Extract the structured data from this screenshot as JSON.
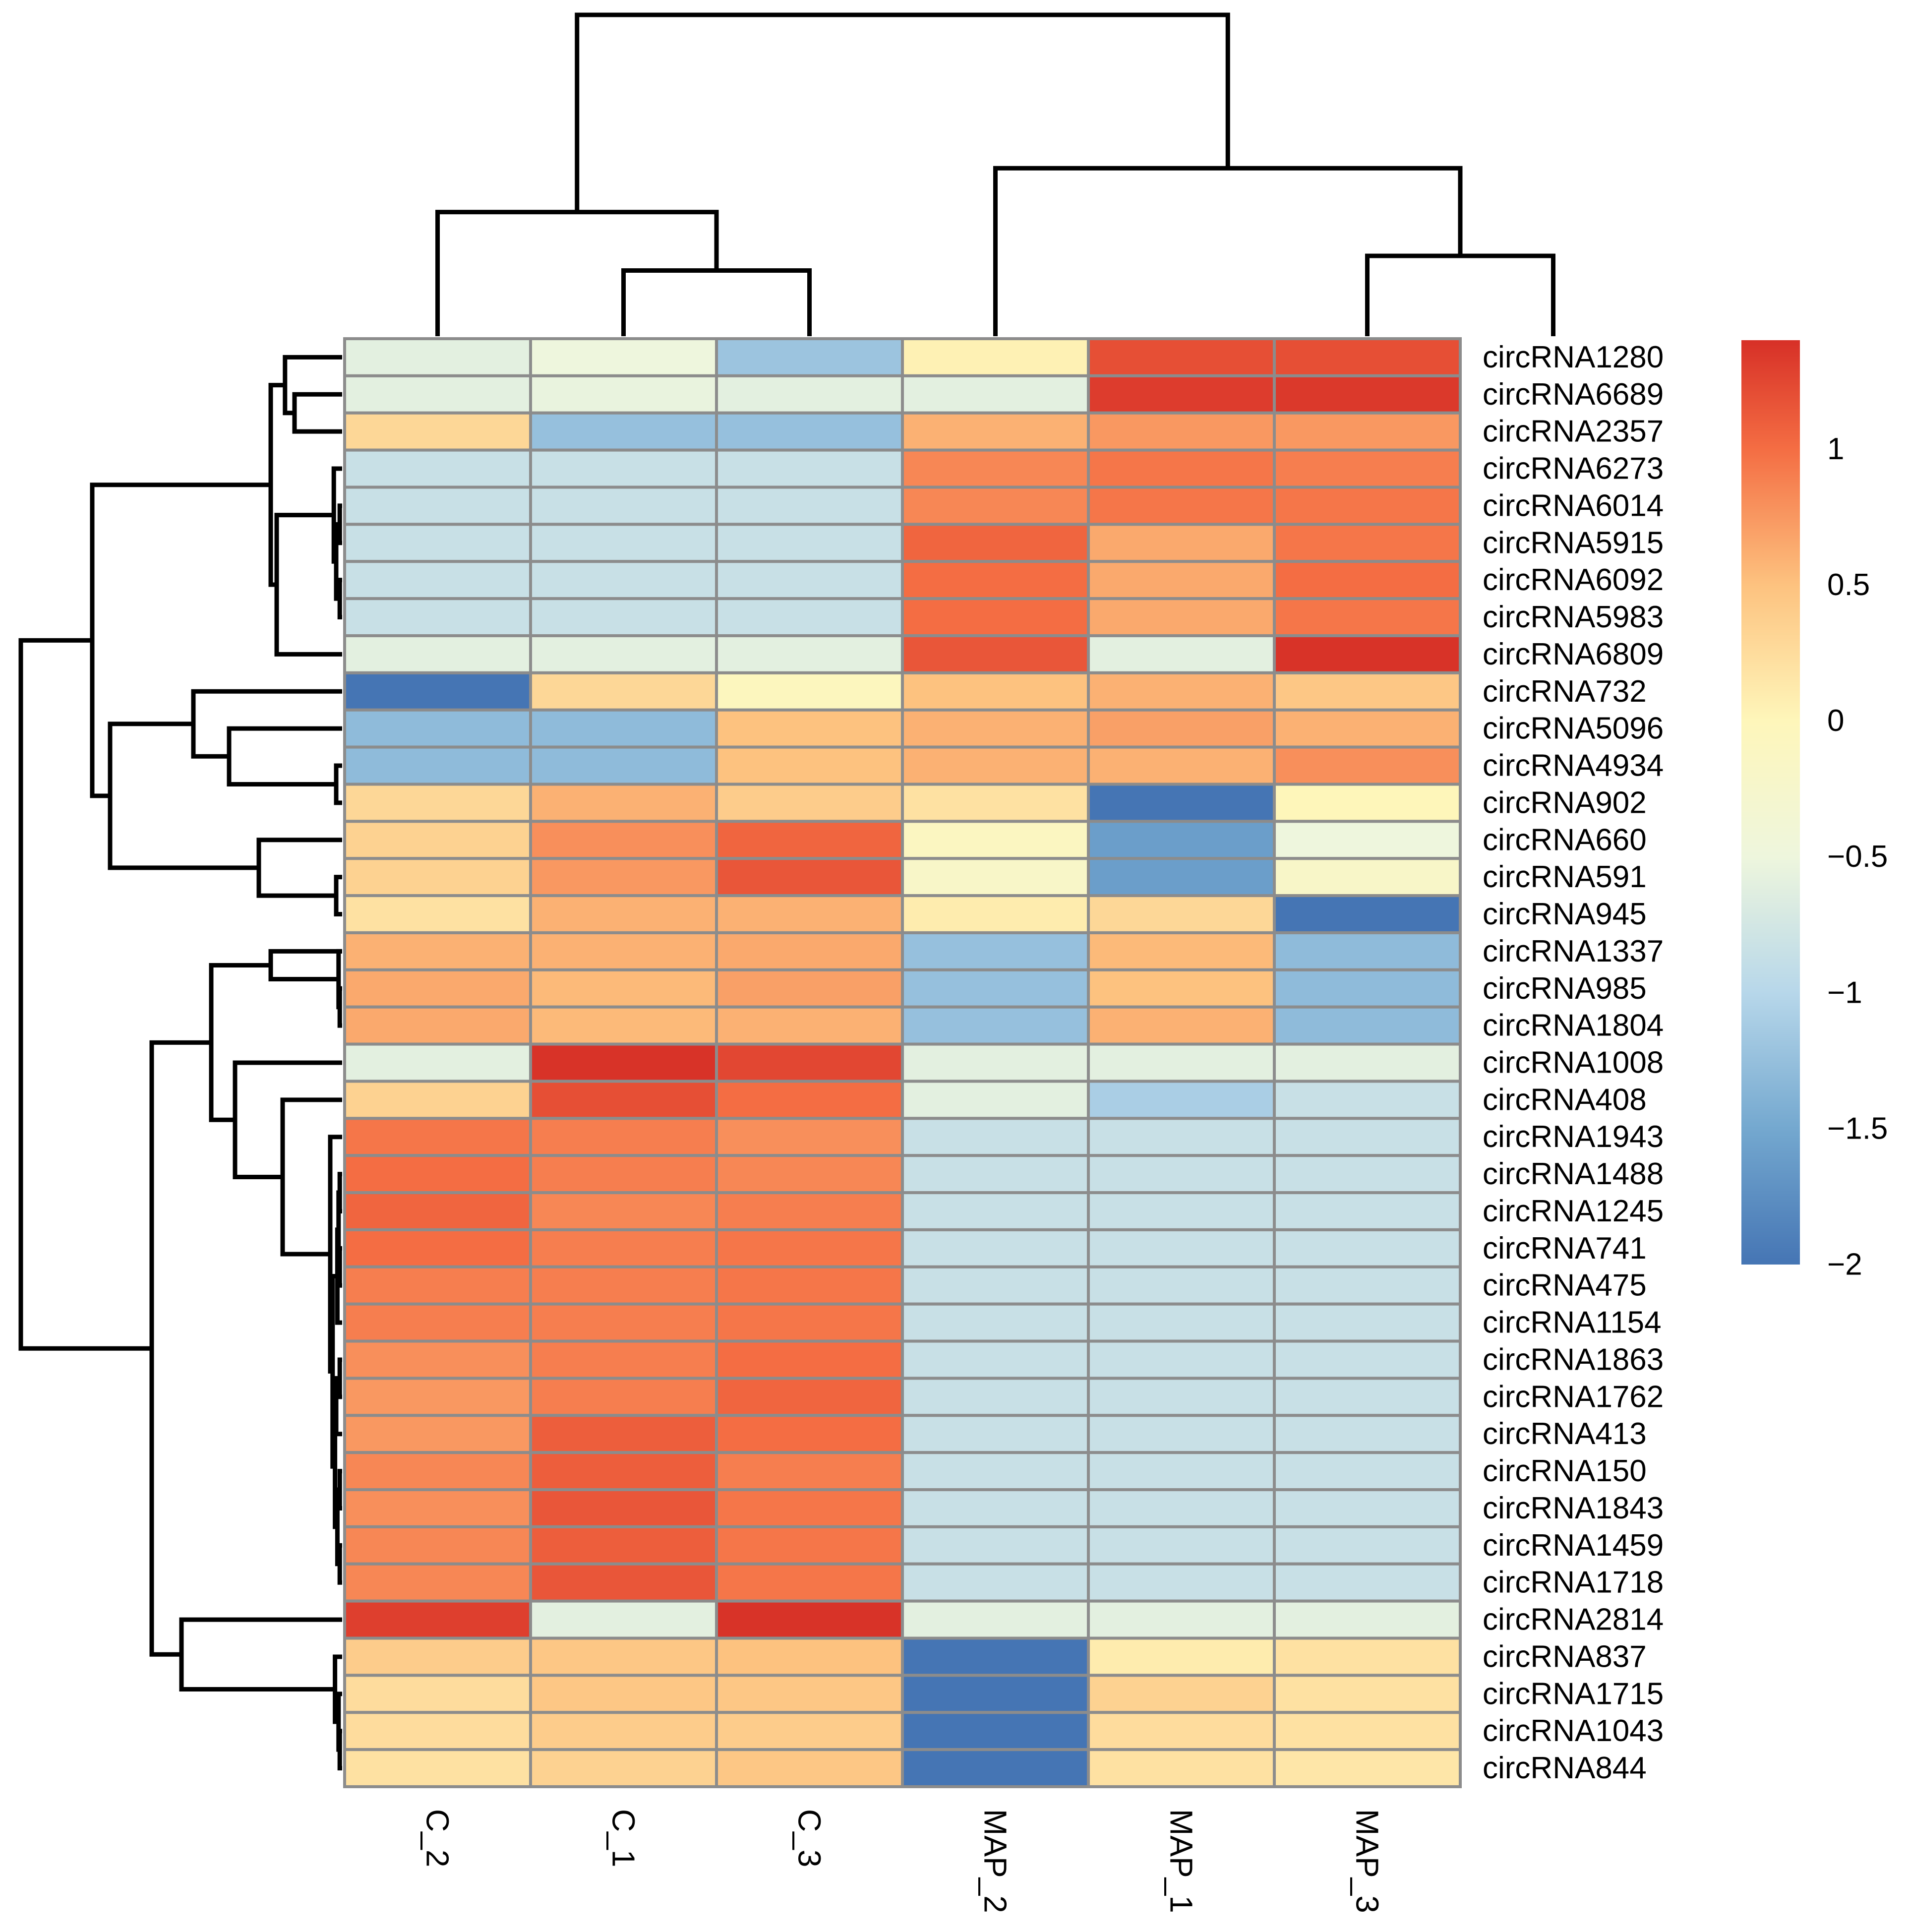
{
  "chart_data": {
    "type": "heatmap",
    "title": "",
    "columns": [
      "C_2",
      "C_1",
      "C_3",
      "MAP_2",
      "MAP_1",
      "MAP_3"
    ],
    "rows": [
      "circRNA1280",
      "circRNA6689",
      "circRNA2357",
      "circRNA6273",
      "circRNA6014",
      "circRNA5915",
      "circRNA6092",
      "circRNA5983",
      "circRNA6809",
      "circRNA732",
      "circRNA5096",
      "circRNA4934",
      "circRNA902",
      "circRNA660",
      "circRNA591",
      "circRNA945",
      "circRNA1337",
      "circRNA985",
      "circRNA1804",
      "circRNA1008",
      "circRNA408",
      "circRNA1943",
      "circRNA1488",
      "circRNA1245",
      "circRNA741",
      "circRNA475",
      "circRNA1154",
      "circRNA1863",
      "circRNA1762",
      "circRNA413",
      "circRNA150",
      "circRNA1843",
      "circRNA1459",
      "circRNA1718",
      "circRNA2814",
      "circRNA837",
      "circRNA1715",
      "circRNA1043",
      "circRNA844"
    ],
    "values": [
      [
        -0.6,
        -0.5,
        -1.2,
        0.05,
        1.2,
        1.2
      ],
      [
        -0.6,
        -0.55,
        -0.6,
        -0.6,
        1.32,
        1.34
      ],
      [
        0.3,
        -1.25,
        -1.25,
        0.6,
        0.75,
        0.75
      ],
      [
        -0.85,
        -0.85,
        -0.85,
        0.85,
        0.95,
        0.9
      ],
      [
        -0.85,
        -0.85,
        -0.85,
        0.85,
        0.95,
        0.95
      ],
      [
        -0.85,
        -0.85,
        -0.85,
        1.05,
        0.65,
        0.95
      ],
      [
        -0.85,
        -0.85,
        -0.85,
        1.0,
        0.65,
        1.0
      ],
      [
        -0.85,
        -0.85,
        -0.85,
        1.0,
        0.65,
        0.95
      ],
      [
        -0.6,
        -0.6,
        -0.6,
        1.15,
        -0.6,
        1.38
      ],
      [
        -2.0,
        0.3,
        -0.05,
        0.5,
        0.6,
        0.45
      ],
      [
        -1.3,
        -1.3,
        0.5,
        0.6,
        0.7,
        0.6
      ],
      [
        -1.3,
        -1.3,
        0.5,
        0.6,
        0.6,
        0.8
      ],
      [
        0.3,
        0.6,
        0.4,
        0.2,
        -2.0,
        0.0
      ],
      [
        0.35,
        0.8,
        1.05,
        -0.1,
        -1.6,
        -0.5
      ],
      [
        0.35,
        0.75,
        1.15,
        -0.2,
        -1.6,
        -0.2
      ],
      [
        0.2,
        0.6,
        0.6,
        0.1,
        0.3,
        -2.0
      ],
      [
        0.6,
        0.6,
        0.65,
        -1.25,
        0.55,
        -1.3
      ],
      [
        0.65,
        0.55,
        0.7,
        -1.25,
        0.5,
        -1.3
      ],
      [
        0.65,
        0.55,
        0.6,
        -1.25,
        0.6,
        -1.3
      ],
      [
        -0.6,
        1.38,
        1.25,
        -0.6,
        -0.6,
        -0.6
      ],
      [
        0.35,
        1.2,
        1.0,
        -0.6,
        -1.1,
        -0.85
      ],
      [
        0.95,
        0.9,
        0.8,
        -0.85,
        -0.85,
        -0.85
      ],
      [
        1.0,
        0.9,
        0.85,
        -0.85,
        -0.85,
        -0.85
      ],
      [
        1.05,
        0.85,
        0.9,
        -0.85,
        -0.85,
        -0.85
      ],
      [
        1.0,
        0.9,
        0.95,
        -0.85,
        -0.85,
        -0.85
      ],
      [
        0.9,
        0.9,
        0.95,
        -0.85,
        -0.85,
        -0.85
      ],
      [
        0.9,
        0.9,
        0.95,
        -0.85,
        -0.85,
        -0.85
      ],
      [
        0.8,
        0.9,
        1.0,
        -0.85,
        -0.85,
        -0.85
      ],
      [
        0.75,
        0.9,
        1.05,
        -0.85,
        -0.85,
        -0.85
      ],
      [
        0.75,
        1.1,
        1.0,
        -0.85,
        -0.85,
        -0.85
      ],
      [
        0.85,
        1.1,
        0.9,
        -0.85,
        -0.85,
        -0.85
      ],
      [
        0.8,
        1.15,
        0.95,
        -0.85,
        -0.85,
        -0.85
      ],
      [
        0.85,
        1.1,
        0.95,
        -0.85,
        -0.85,
        -0.85
      ],
      [
        0.85,
        1.15,
        0.95,
        -0.85,
        -0.85,
        -0.85
      ],
      [
        1.3,
        -0.6,
        1.38,
        -0.6,
        -0.6,
        -0.6
      ],
      [
        0.4,
        0.45,
        0.5,
        -2.0,
        0.1,
        0.2
      ],
      [
        0.25,
        0.45,
        0.45,
        -2.0,
        0.35,
        0.2
      ],
      [
        0.25,
        0.4,
        0.4,
        -2.0,
        0.25,
        0.2
      ],
      [
        0.2,
        0.35,
        0.45,
        -2.0,
        0.2,
        0.15
      ]
    ],
    "color_scale": {
      "min": -2,
      "max": 1.4,
      "stops": [
        {
          "value": -2.0,
          "color": "#4575b4"
        },
        {
          "value": -1.5,
          "color": "#74a8cf"
        },
        {
          "value": -1.0,
          "color": "#b7d7ea"
        },
        {
          "value": -0.5,
          "color": "#eef6dd"
        },
        {
          "value": 0.0,
          "color": "#fef6ba"
        },
        {
          "value": 0.5,
          "color": "#fdc27f"
        },
        {
          "value": 1.0,
          "color": "#f46d43"
        },
        {
          "value": 1.4,
          "color": "#d73027"
        }
      ],
      "ticks": [
        1,
        0.5,
        0,
        -0.5,
        -1,
        -1.5,
        -2
      ],
      "tick_labels": [
        "1",
        "0.5",
        "0",
        "−0.5",
        "−1",
        "−1.5",
        "−2"
      ]
    },
    "column_dendrogram": {
      "merges": [
        [
          1,
          2,
          0.45
        ],
        [
          5,
          6,
          0.55
        ],
        [
          0,
          -1,
          0.85
        ],
        [
          3,
          -2,
          1.15
        ],
        [
          -3,
          -4,
          2.2
        ]
      ]
    },
    "row_dendrogram": {
      "merges": [
        [
          4,
          5,
          0.02
        ],
        [
          6,
          7,
          0.02
        ],
        [
          -1,
          -2,
          0.05
        ],
        [
          3,
          -3,
          0.07
        ],
        [
          11,
          12,
          0.05
        ],
        [
          17,
          18,
          0.02
        ],
        [
          16,
          -6,
          0.03
        ],
        [
          14,
          15,
          0.05
        ],
        [
          22,
          23,
          0.02
        ],
        [
          24,
          25,
          0.02
        ],
        [
          -9,
          -10,
          0.03
        ],
        [
          27,
          28,
          0.02
        ],
        [
          -11,
          26,
          0.04
        ],
        [
          -12,
          29,
          0.05
        ],
        [
          30,
          31,
          0.02
        ],
        [
          32,
          33,
          0.02
        ],
        [
          -15,
          -16,
          0.04
        ],
        [
          -14,
          -17,
          0.06
        ],
        [
          -13,
          -18,
          0.08
        ],
        [
          21,
          -19,
          0.1
        ],
        [
          37,
          38,
          0.02
        ],
        [
          36,
          -21,
          0.03
        ],
        [
          35,
          -22,
          0.06
        ],
        [
          1,
          2,
          0.4
        ],
        [
          0,
          -24,
          0.48
        ],
        [
          -4,
          8,
          0.55
        ],
        [
          -25,
          -26,
          0.6
        ],
        [
          13,
          -8,
          0.7
        ],
        [
          16,
          -7,
          0.6
        ],
        [
          20,
          -20,
          0.5
        ],
        [
          19,
          -30,
          0.9
        ],
        [
          -29,
          -31,
          1.1
        ],
        [
          34,
          -23,
          1.35
        ],
        [
          -32,
          -33,
          1.6
        ],
        [
          10,
          -5,
          0.95
        ],
        [
          9,
          -35,
          1.25
        ],
        [
          -28,
          -36,
          1.95
        ],
        [
          -27,
          -37,
          2.1
        ],
        [
          -34,
          -38,
          2.7
        ]
      ]
    }
  }
}
